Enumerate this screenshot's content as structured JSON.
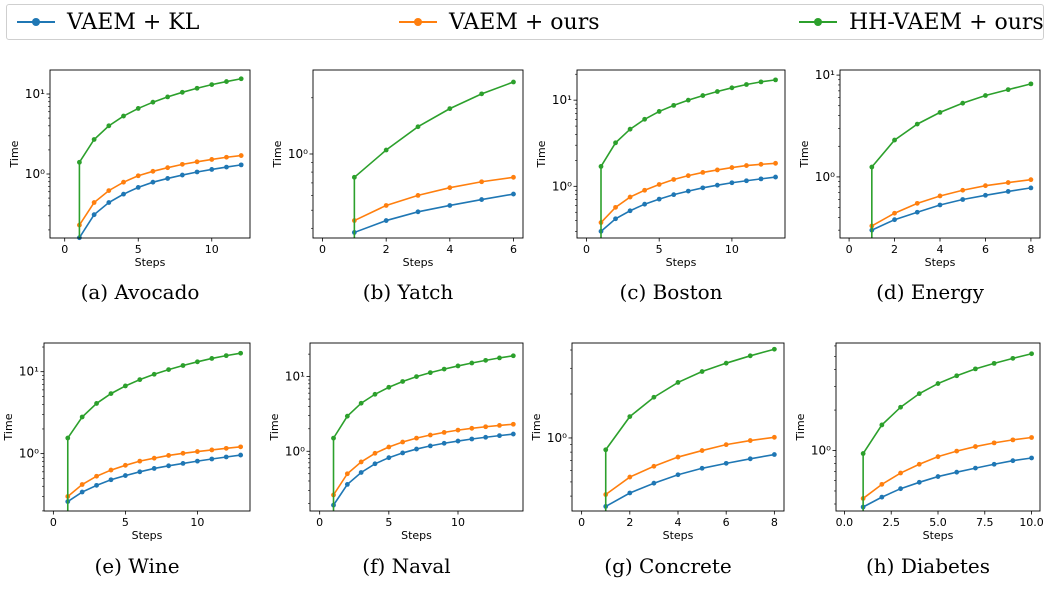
{
  "legend": [
    {
      "label": "VAEM + KL",
      "color": "#1f77b4"
    },
    {
      "label": "VAEM + ours",
      "color": "#ff7f0e"
    },
    {
      "label": "HH-VAEM + ours",
      "color": "#2ca02c"
    }
  ],
  "chart_data": [
    {
      "type": "line",
      "caption": "(a)  Avocado",
      "xlabel": "Steps",
      "ylabel": "Time",
      "xlim": [
        -1,
        12.6
      ],
      "ylim": [
        0.1585,
        19.95
      ],
      "yscale": "log",
      "xticks": [
        0,
        5,
        10
      ],
      "xtick_labels": [
        "0",
        "5",
        "10"
      ],
      "yticks": [
        1,
        10
      ],
      "ytick_labels": [
        "10⁰",
        "10¹"
      ],
      "x": [
        1,
        2,
        3,
        4,
        5,
        6,
        7,
        8,
        9,
        10,
        11,
        12
      ],
      "series": [
        {
          "name": "VAEM + KL",
          "values": [
            0.16,
            0.31,
            0.44,
            0.56,
            0.68,
            0.79,
            0.88,
            0.97,
            1.06,
            1.14,
            1.22,
            1.3
          ]
        },
        {
          "name": "VAEM + ours",
          "values": [
            0.23,
            0.44,
            0.62,
            0.79,
            0.95,
            1.08,
            1.2,
            1.32,
            1.42,
            1.52,
            1.62,
            1.7
          ]
        },
        {
          "name": "HH-VAEM + ours",
          "values": [
            1.4,
            2.7,
            4.0,
            5.3,
            6.6,
            7.9,
            9.2,
            10.5,
            11.8,
            13.1,
            14.3,
            15.5
          ],
          "drop_from": 0.158
        }
      ]
    },
    {
      "type": "line",
      "caption": "(b)  Yatch",
      "xlabel": "Steps",
      "ylabel": "Time",
      "xlim": [
        -0.3,
        6.3
      ],
      "ylim": [
        0.3548,
        2.818
      ],
      "yscale": "log",
      "xticks": [
        0,
        2,
        4,
        6
      ],
      "xtick_labels": [
        "0",
        "2",
        "4",
        "6"
      ],
      "yticks": [
        1
      ],
      "ytick_labels": [
        "10⁰"
      ],
      "x": [
        1,
        2,
        3,
        4,
        5,
        6
      ],
      "series": [
        {
          "name": "VAEM + KL",
          "values": [
            0.38,
            0.44,
            0.49,
            0.53,
            0.57,
            0.61
          ]
        },
        {
          "name": "VAEM + ours",
          "values": [
            0.44,
            0.53,
            0.6,
            0.66,
            0.71,
            0.75
          ]
        },
        {
          "name": "HH-VAEM + ours",
          "values": [
            0.75,
            1.05,
            1.4,
            1.75,
            2.1,
            2.43
          ],
          "drop_from": 0.355
        }
      ]
    },
    {
      "type": "line",
      "caption": "(c)  Boston",
      "xlabel": "Steps",
      "ylabel": "Time",
      "xlim": [
        -0.65,
        13.65
      ],
      "ylim": [
        0.2512,
        22.39
      ],
      "yscale": "log",
      "xticks": [
        0,
        5,
        10
      ],
      "xtick_labels": [
        "0",
        "5",
        "10"
      ],
      "yticks": [
        1,
        10
      ],
      "ytick_labels": [
        "10⁰",
        "10¹"
      ],
      "x": [
        1,
        2,
        3,
        4,
        5,
        6,
        7,
        8,
        9,
        10,
        11,
        12,
        13
      ],
      "series": [
        {
          "name": "VAEM + KL",
          "values": [
            0.3,
            0.42,
            0.52,
            0.62,
            0.71,
            0.8,
            0.88,
            0.96,
            1.03,
            1.1,
            1.16,
            1.22,
            1.28
          ]
        },
        {
          "name": "VAEM + ours",
          "values": [
            0.38,
            0.57,
            0.75,
            0.9,
            1.05,
            1.2,
            1.33,
            1.45,
            1.55,
            1.65,
            1.74,
            1.8,
            1.85
          ]
        },
        {
          "name": "HH-VAEM + ours",
          "values": [
            1.7,
            3.2,
            4.6,
            6.0,
            7.4,
            8.7,
            10.0,
            11.3,
            12.6,
            13.9,
            15.2,
            16.3,
            17.2
          ],
          "drop_from": 0.252
        }
      ]
    },
    {
      "type": "line",
      "caption": "(d)  Energy",
      "xlabel": "Steps",
      "ylabel": "Time",
      "xlim": [
        -0.4,
        8.4
      ],
      "ylim": [
        0.2512,
        11.22
      ],
      "yscale": "log",
      "xticks": [
        0,
        2,
        4,
        6,
        8
      ],
      "xtick_labels": [
        "0",
        "2",
        "4",
        "6",
        "8"
      ],
      "yticks": [
        1,
        10
      ],
      "ytick_labels": [
        "10⁰",
        "10¹"
      ],
      "x": [
        1,
        2,
        3,
        4,
        5,
        6,
        7,
        8
      ],
      "series": [
        {
          "name": "VAEM + KL",
          "values": [
            0.3,
            0.38,
            0.45,
            0.53,
            0.6,
            0.66,
            0.72,
            0.78
          ]
        },
        {
          "name": "VAEM + ours",
          "values": [
            0.33,
            0.44,
            0.55,
            0.65,
            0.74,
            0.82,
            0.88,
            0.94
          ]
        },
        {
          "name": "HH-VAEM + ours",
          "values": [
            1.25,
            2.3,
            3.3,
            4.3,
            5.3,
            6.3,
            7.2,
            8.2
          ],
          "drop_from": 0.251
        }
      ]
    },
    {
      "type": "line",
      "caption": "(e)  Wine",
      "xlabel": "Steps",
      "ylabel": "Time",
      "xlim": [
        -0.65,
        13.65
      ],
      "ylim": [
        0.1995,
        22.39
      ],
      "yscale": "log",
      "xticks": [
        0,
        5,
        10
      ],
      "xtick_labels": [
        "0",
        "5",
        "10"
      ],
      "yticks": [
        1,
        10
      ],
      "ytick_labels": [
        "10⁰",
        "10¹"
      ],
      "x": [
        1,
        2,
        3,
        4,
        5,
        6,
        7,
        8,
        9,
        10,
        11,
        12,
        13
      ],
      "series": [
        {
          "name": "VAEM + KL",
          "values": [
            0.26,
            0.34,
            0.41,
            0.48,
            0.54,
            0.6,
            0.66,
            0.71,
            0.76,
            0.81,
            0.86,
            0.91,
            0.96
          ]
        },
        {
          "name": "VAEM + ours",
          "values": [
            0.3,
            0.42,
            0.53,
            0.63,
            0.72,
            0.81,
            0.88,
            0.95,
            1.01,
            1.06,
            1.11,
            1.16,
            1.21
          ]
        },
        {
          "name": "HH-VAEM + ours",
          "values": [
            1.55,
            2.8,
            4.1,
            5.4,
            6.7,
            8.0,
            9.3,
            10.6,
            11.9,
            13.2,
            14.5,
            15.7,
            16.8
          ],
          "drop_from": 0.2
        }
      ]
    },
    {
      "type": "line",
      "caption": "(f)  Naval",
      "xlabel": "Steps",
      "ylabel": "Time",
      "xlim": [
        -0.7,
        14.7
      ],
      "ylim": [
        0.1585,
        28.18
      ],
      "yscale": "log",
      "xticks": [
        0,
        5,
        10
      ],
      "xtick_labels": [
        "0",
        "5",
        "10"
      ],
      "yticks": [
        1,
        10
      ],
      "ytick_labels": [
        "10⁰",
        "10¹"
      ],
      "x": [
        1,
        2,
        3,
        4,
        5,
        6,
        7,
        8,
        9,
        10,
        11,
        12,
        13,
        14
      ],
      "series": [
        {
          "name": "VAEM + KL",
          "values": [
            0.19,
            0.36,
            0.52,
            0.68,
            0.82,
            0.95,
            1.07,
            1.18,
            1.28,
            1.37,
            1.46,
            1.54,
            1.62,
            1.7
          ]
        },
        {
          "name": "VAEM + ours",
          "values": [
            0.26,
            0.5,
            0.72,
            0.94,
            1.14,
            1.33,
            1.5,
            1.65,
            1.79,
            1.92,
            2.03,
            2.13,
            2.22,
            2.3
          ]
        },
        {
          "name": "HH-VAEM + ours",
          "values": [
            1.5,
            2.95,
            4.4,
            5.8,
            7.2,
            8.6,
            10.0,
            11.3,
            12.6,
            13.9,
            15.2,
            16.5,
            17.8,
            19.0
          ],
          "drop_from": 0.158
        }
      ]
    },
    {
      "type": "line",
      "caption": "(g)  Concrete",
      "xlabel": "Steps",
      "ylabel": "Time",
      "xlim": [
        -0.4,
        8.4
      ],
      "ylim": [
        0.3162,
        4.467
      ],
      "yscale": "log",
      "xticks": [
        0,
        2,
        4,
        6,
        8
      ],
      "xtick_labels": [
        "0",
        "2",
        "4",
        "6",
        "8"
      ],
      "yticks": [
        1
      ],
      "ytick_labels": [
        "10⁰"
      ],
      "x": [
        1,
        2,
        3,
        4,
        5,
        6,
        7,
        8
      ],
      "series": [
        {
          "name": "VAEM + KL",
          "values": [
            0.34,
            0.42,
            0.49,
            0.56,
            0.62,
            0.67,
            0.72,
            0.77
          ]
        },
        {
          "name": "VAEM + ours",
          "values": [
            0.41,
            0.54,
            0.64,
            0.74,
            0.82,
            0.9,
            0.96,
            1.01
          ]
        },
        {
          "name": "HH-VAEM + ours",
          "values": [
            0.83,
            1.4,
            1.9,
            2.4,
            2.85,
            3.25,
            3.65,
            4.05
          ],
          "drop_from": 0.316
        }
      ]
    },
    {
      "type": "line",
      "caption": "(h)  Diabetes",
      "xlabel": "Steps",
      "ylabel": "Time",
      "xlim": [
        -0.45,
        10.45
      ],
      "ylim": [
        0.3548,
        6.31
      ],
      "yscale": "log",
      "xticks": [
        0,
        2.5,
        5,
        7.5,
        10
      ],
      "xtick_labels": [
        "0.0",
        "2.5",
        "5.0",
        "7.5",
        "10.0"
      ],
      "yticks": [
        1
      ],
      "ytick_labels": [
        "10⁰"
      ],
      "x": [
        1,
        2,
        3,
        4,
        5,
        6,
        7,
        8,
        9,
        10
      ],
      "series": [
        {
          "name": "VAEM + KL",
          "values": [
            0.38,
            0.45,
            0.52,
            0.58,
            0.64,
            0.69,
            0.74,
            0.79,
            0.84,
            0.88
          ]
        },
        {
          "name": "VAEM + ours",
          "values": [
            0.44,
            0.56,
            0.68,
            0.79,
            0.9,
            0.99,
            1.07,
            1.14,
            1.2,
            1.25
          ]
        },
        {
          "name": "HH-VAEM + ours",
          "values": [
            0.95,
            1.55,
            2.1,
            2.65,
            3.15,
            3.6,
            4.05,
            4.45,
            4.85,
            5.25
          ],
          "drop_from": 0.355
        }
      ]
    }
  ]
}
